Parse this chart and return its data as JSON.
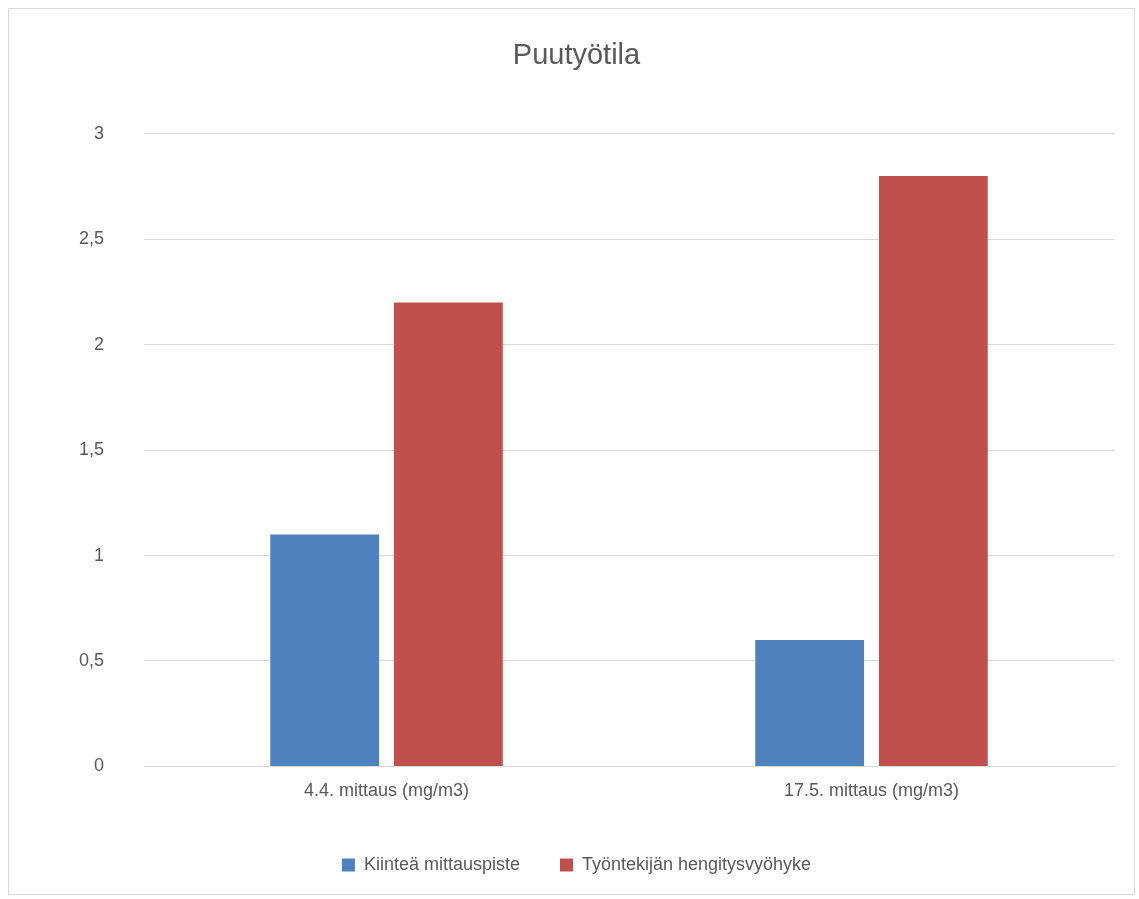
{
  "chart_data": {
    "type": "bar",
    "title": "Puutyötila",
    "categories": [
      "4.4. mittaus (mg/m3)",
      "17.5. mittaus (mg/m3)"
    ],
    "series": [
      {
        "name": "Kiinteä mittauspiste",
        "color": "#4f81bd",
        "values": [
          1.1,
          0.6
        ]
      },
      {
        "name": "Työntekijän hengitysvyöhyke",
        "color": "#c0504d",
        "values": [
          2.2,
          2.8
        ]
      }
    ],
    "ylim": [
      0,
      3
    ],
    "yticks": [
      0,
      {
        "value": 0.5,
        "label": "0,5"
      },
      1,
      {
        "value": 1.5,
        "label": "1,5"
      },
      2,
      {
        "value": 2.5,
        "label": "2,5"
      },
      3
    ],
    "grid": "y",
    "legend": "bottom"
  }
}
